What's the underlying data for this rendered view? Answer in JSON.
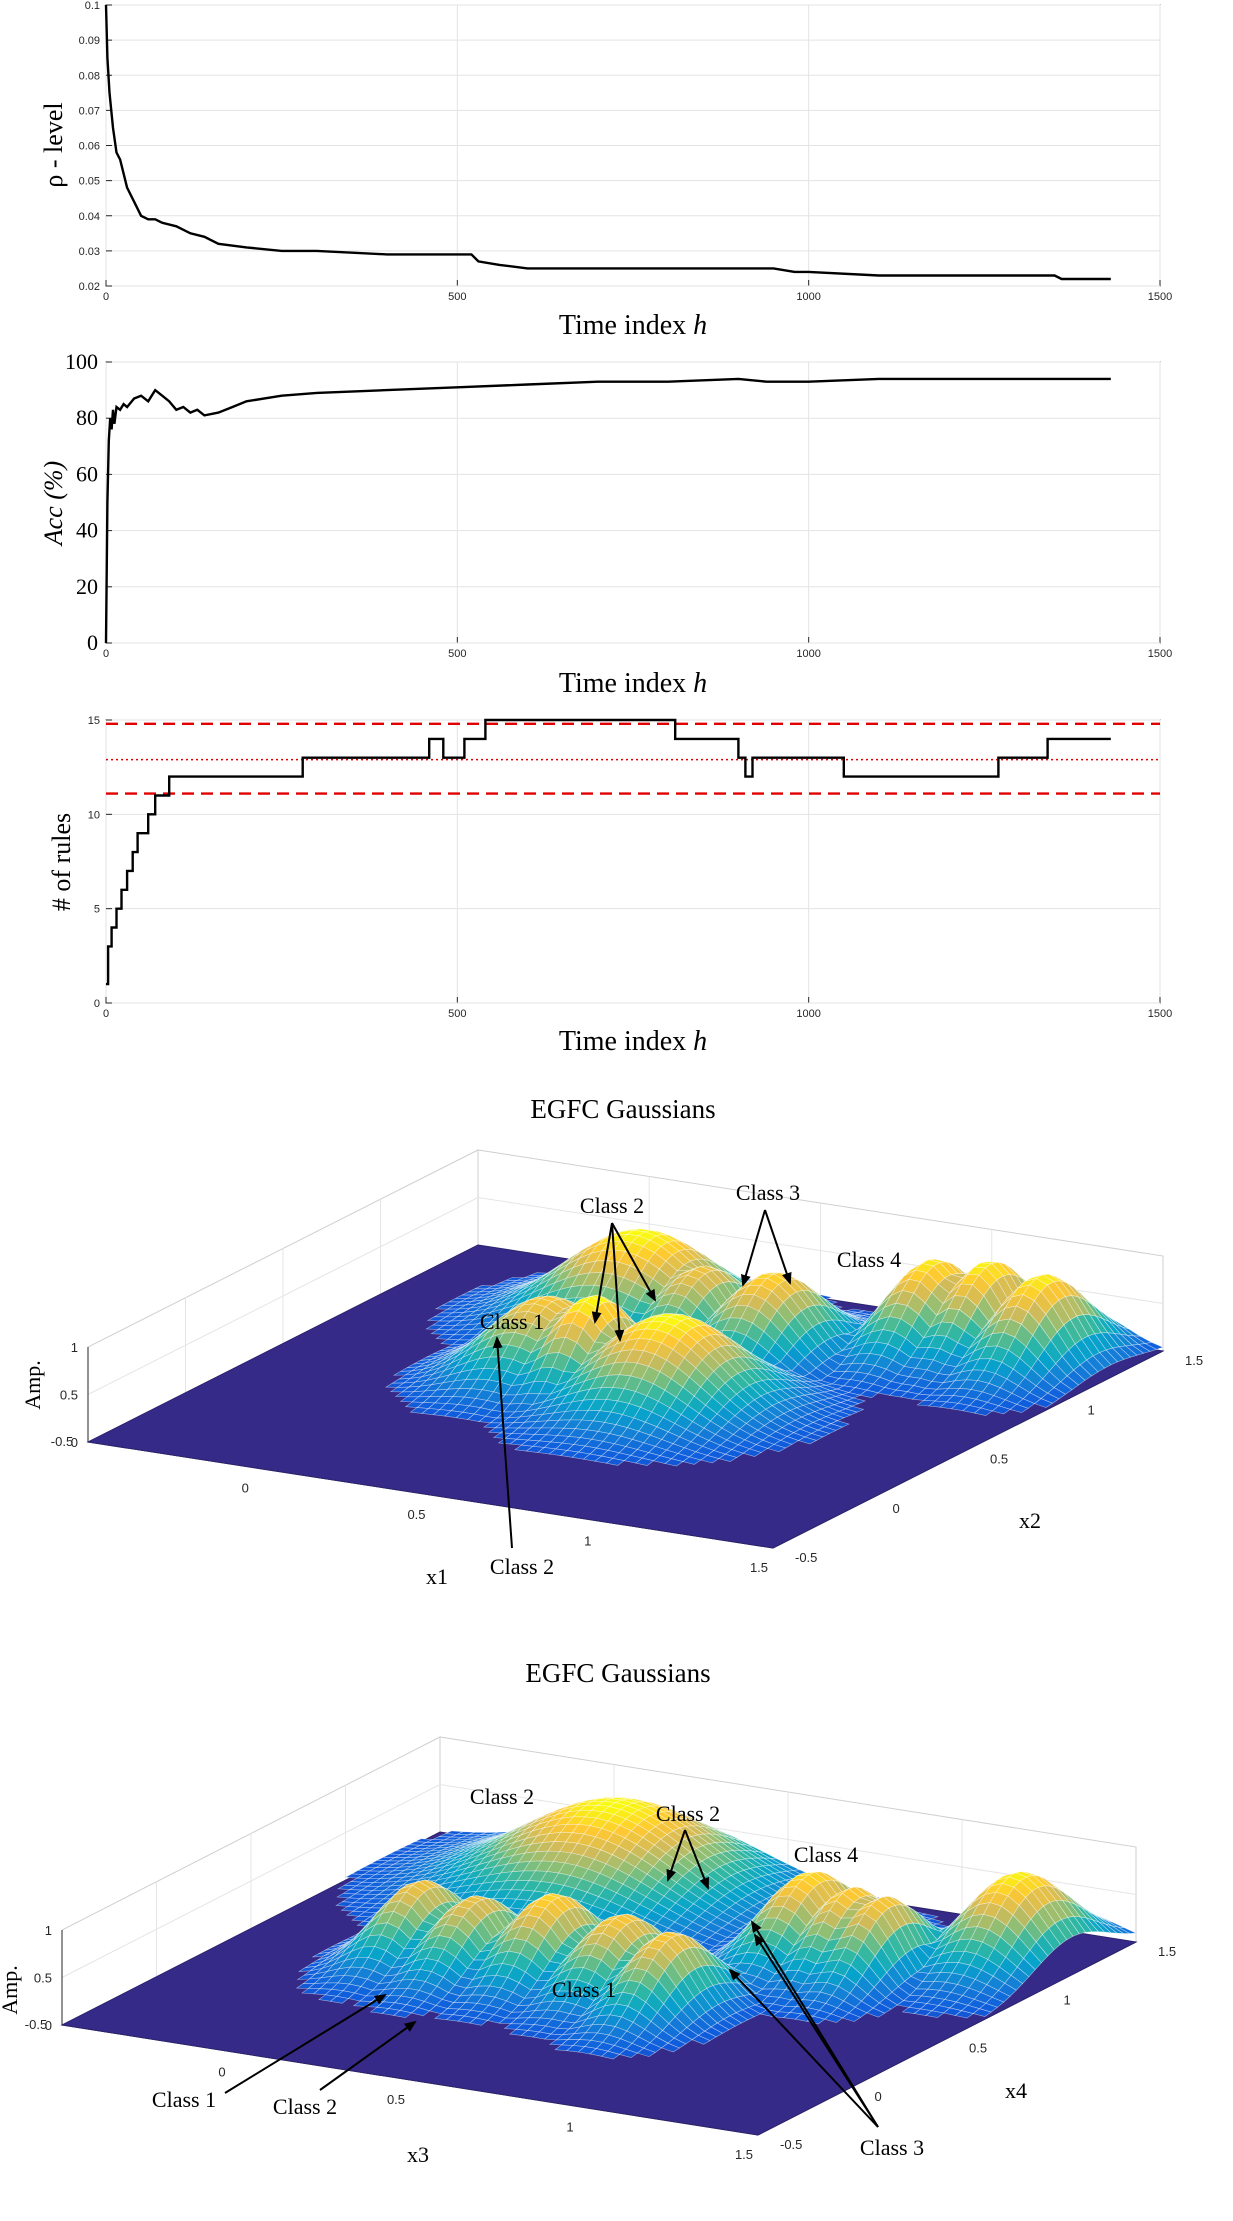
{
  "chart_data": [
    {
      "type": "line",
      "xlabel": "Time index",
      "xlabel_var": "h",
      "ylabel": "ρ - level",
      "xlim": [
        0,
        1500
      ],
      "ylim": [
        0.02,
        0.1
      ],
      "xticks": [
        "0",
        "500",
        "1000",
        "1500"
      ],
      "yticks": [
        "0.02",
        "0.03",
        "0.04",
        "0.05",
        "0.06",
        "0.07",
        "0.08",
        "0.09",
        "0.1"
      ],
      "grid": true,
      "series": [
        {
          "x": [
            0,
            2,
            5,
            10,
            15,
            20,
            25,
            30,
            40,
            50,
            60,
            70,
            80,
            100,
            120,
            140,
            160,
            200,
            250,
            300,
            400,
            500,
            520,
            530,
            560,
            600,
            700,
            800,
            900,
            950,
            980,
            1000,
            1100,
            1200,
            1300,
            1350,
            1360,
            1430
          ],
          "y": [
            0.1,
            0.085,
            0.075,
            0.065,
            0.058,
            0.056,
            0.052,
            0.048,
            0.044,
            0.04,
            0.039,
            0.039,
            0.038,
            0.037,
            0.035,
            0.034,
            0.032,
            0.031,
            0.03,
            0.03,
            0.029,
            0.029,
            0.029,
            0.027,
            0.026,
            0.025,
            0.025,
            0.025,
            0.025,
            0.025,
            0.024,
            0.024,
            0.023,
            0.023,
            0.023,
            0.023,
            0.022,
            0.022
          ]
        }
      ]
    },
    {
      "type": "line",
      "xlabel": "Time index",
      "xlabel_var": "h",
      "ylabel": "Acc (%)",
      "xlim": [
        0,
        1500
      ],
      "ylim": [
        0,
        100
      ],
      "xticks": [
        "0",
        "500",
        "1000",
        "1500"
      ],
      "yticks": [
        "0",
        "20",
        "40",
        "60",
        "80",
        "100"
      ],
      "grid": true,
      "series": [
        {
          "x": [
            0,
            2,
            4,
            6,
            8,
            10,
            12,
            15,
            20,
            25,
            30,
            40,
            50,
            60,
            70,
            80,
            90,
            100,
            110,
            120,
            130,
            140,
            160,
            180,
            200,
            250,
            300,
            400,
            500,
            600,
            700,
            800,
            900,
            940,
            1000,
            1100,
            1200,
            1300,
            1430
          ],
          "y": [
            0,
            50,
            72,
            80,
            76,
            83,
            78,
            84,
            83,
            85,
            84,
            87,
            88,
            86,
            90,
            88,
            86,
            83,
            84,
            82,
            83,
            81,
            82,
            84,
            86,
            88,
            89,
            90,
            91,
            92,
            93,
            93,
            94,
            93,
            93,
            94,
            94,
            94,
            94
          ]
        }
      ]
    },
    {
      "type": "line",
      "xlabel": "Time index",
      "xlabel_var": "h",
      "ylabel": "# of rules",
      "xlim": [
        0,
        1500
      ],
      "ylim": [
        0,
        15
      ],
      "xticks": [
        "0",
        "500",
        "1000",
        "1500"
      ],
      "yticks": [
        "0",
        "5",
        "10",
        "15"
      ],
      "grid": true,
      "reference_lines": [
        {
          "y": 14.8,
          "style": "dashed",
          "color": "#e00000"
        },
        {
          "y": 12.9,
          "style": "dotted",
          "color": "#e00000"
        },
        {
          "y": 11.1,
          "style": "dashed",
          "color": "#e00000"
        }
      ],
      "series": [
        {
          "step": true,
          "x": [
            0,
            3,
            8,
            15,
            22,
            30,
            38,
            45,
            60,
            70,
            80,
            90,
            100,
            280,
            460,
            480,
            510,
            540,
            810,
            900,
            910,
            920,
            1050,
            1270,
            1340,
            1430
          ],
          "y": [
            1,
            3,
            4,
            5,
            6,
            7,
            8,
            9,
            10,
            11,
            11,
            12,
            12,
            13,
            14,
            13,
            14,
            15,
            14,
            13,
            12,
            13,
            12,
            13,
            14,
            14
          ]
        }
      ]
    },
    {
      "type": "surface",
      "title": "EGFC Gaussians",
      "xlabel": "x1",
      "ylabel": "x2",
      "zlabel": "Amp.",
      "xticks": [
        "-0.5",
        "0",
        "0.5",
        "1",
        "1.5"
      ],
      "yticks": [
        "-0.5",
        "0",
        "0.5",
        "1",
        "1.5"
      ],
      "zticks": [
        "0",
        "0.5",
        "1"
      ],
      "colormap": [
        "#352a87",
        "#0f5cdd",
        "#1481d6",
        "#06a4ca",
        "#2eb7a4",
        "#87bf77",
        "#d1bb59",
        "#fec832",
        "#f9fb0e"
      ],
      "annotations": [
        "Class 2",
        "Class 3",
        "Class 4",
        "Class 1",
        "Class 2"
      ]
    },
    {
      "type": "surface",
      "title": "EGFC Gaussians",
      "xlabel": "x3",
      "ylabel": "x4",
      "zlabel": "Amp.",
      "xticks": [
        "-0.5",
        "0",
        "0.5",
        "1",
        "1.5"
      ],
      "yticks": [
        "-0.5",
        "0",
        "0.5",
        "1",
        "1.5"
      ],
      "zticks": [
        "0",
        "0.5",
        "1"
      ],
      "colormap": [
        "#352a87",
        "#0f5cdd",
        "#1481d6",
        "#06a4ca",
        "#2eb7a4",
        "#87bf77",
        "#d1bb59",
        "#fec832",
        "#f9fb0e"
      ],
      "annotations": [
        "Class 2",
        "Class 2",
        "Class 4",
        "Class 1",
        "Class 1",
        "Class 2",
        "Class 3"
      ]
    }
  ]
}
